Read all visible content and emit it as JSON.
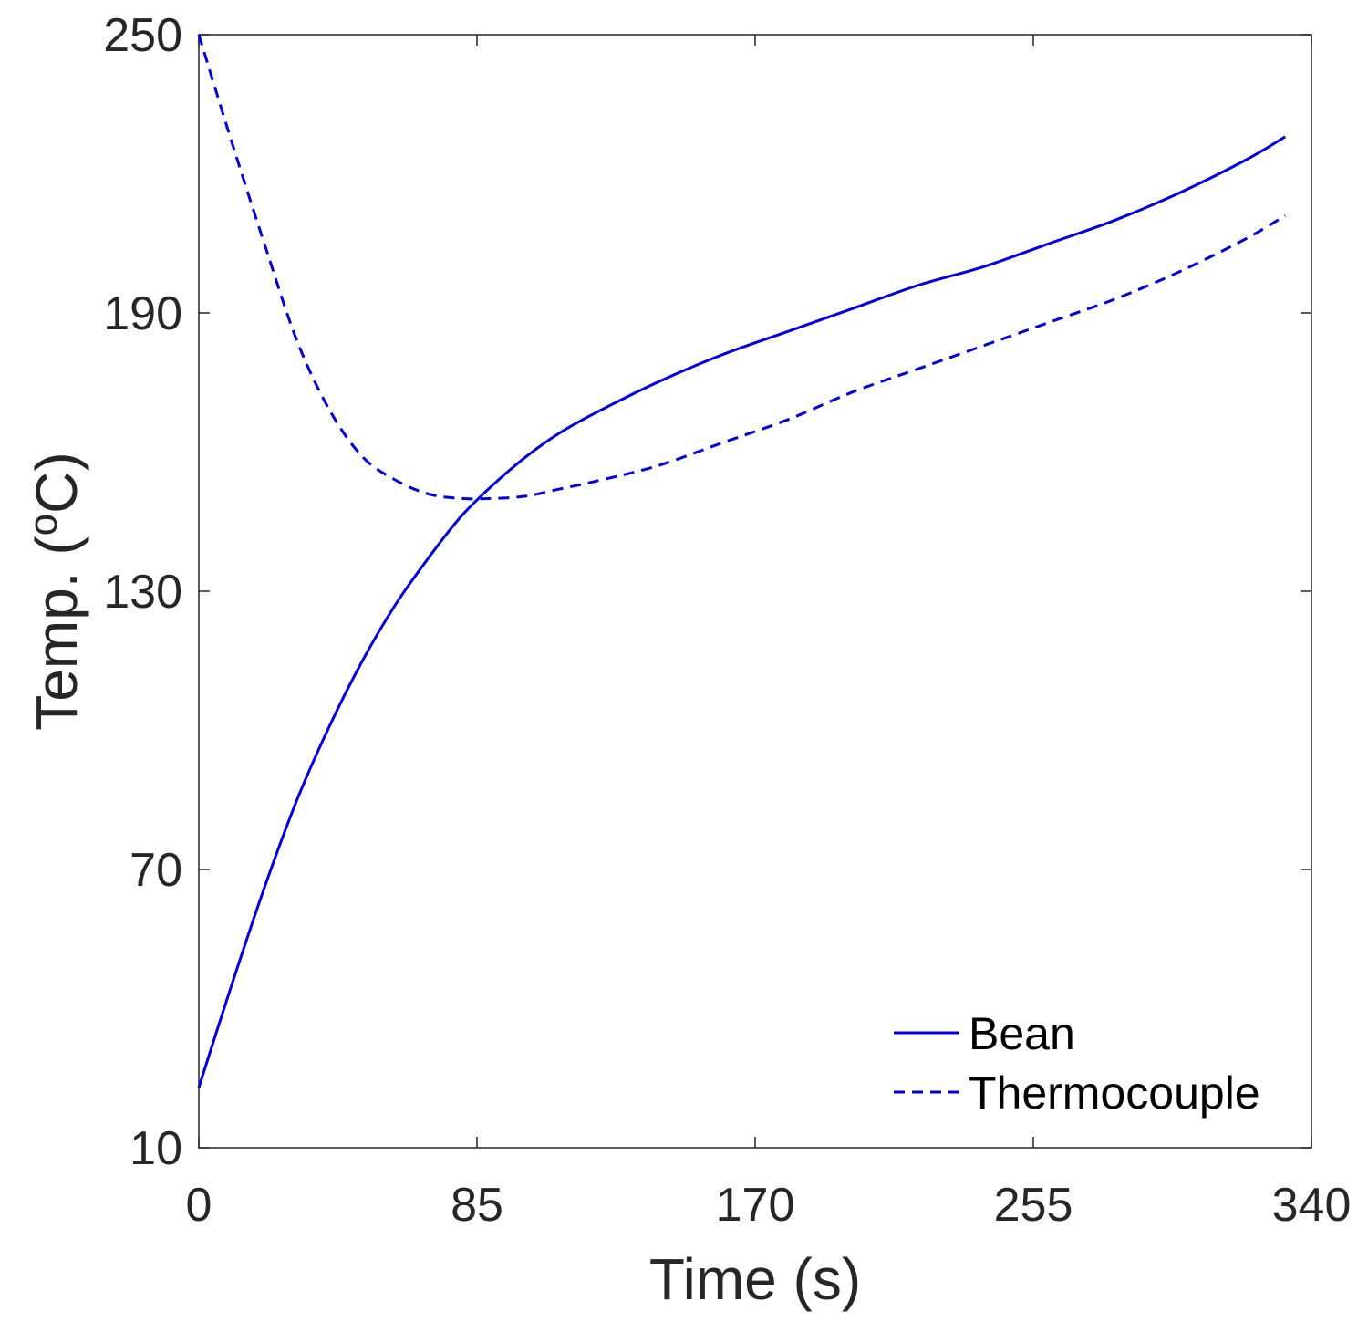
{
  "chart_data": {
    "type": "line",
    "title": "",
    "xlabel": "Time (s)",
    "ylabel_main": "Temp. (",
    "ylabel_sup": "o",
    "ylabel_tail": "C)",
    "xlim": [
      0,
      340
    ],
    "ylim": [
      10,
      250
    ],
    "xticks": [
      0,
      85,
      170,
      255,
      340
    ],
    "xtick_labels": [
      "0",
      "85",
      "170",
      "255",
      "340"
    ],
    "yticks": [
      10,
      70,
      130,
      190,
      250
    ],
    "ytick_labels": [
      "10",
      "70",
      "130",
      "190",
      "250"
    ],
    "grid": false,
    "legend_position": "bottom-right",
    "series": [
      {
        "name": "Bean",
        "style": "solid",
        "color": "#0000e0",
        "x": [
          0,
          10,
          20,
          30,
          40,
          50,
          60,
          70,
          80,
          90,
          100,
          110,
          120,
          140,
          160,
          180,
          200,
          220,
          240,
          260,
          280,
          300,
          320,
          332
        ],
        "y": [
          23,
          45,
          66,
          85,
          101,
          115,
          127,
          137,
          146,
          153,
          159,
          164,
          168,
          175,
          181,
          186,
          191,
          196,
          200,
          205,
          210,
          216,
          223,
          228
        ]
      },
      {
        "name": "Thermocouple",
        "style": "dashed",
        "color": "#0000e0",
        "x": [
          0,
          10,
          20,
          30,
          40,
          50,
          60,
          70,
          80,
          90,
          100,
          110,
          120,
          140,
          160,
          180,
          200,
          220,
          240,
          260,
          280,
          300,
          320,
          332
        ],
        "y": [
          250,
          227,
          205,
          184,
          169,
          159,
          154,
          151,
          150,
          150,
          150.5,
          152,
          153.5,
          157,
          162,
          167,
          173,
          178,
          183,
          188,
          193,
          199,
          206,
          211
        ]
      }
    ]
  }
}
